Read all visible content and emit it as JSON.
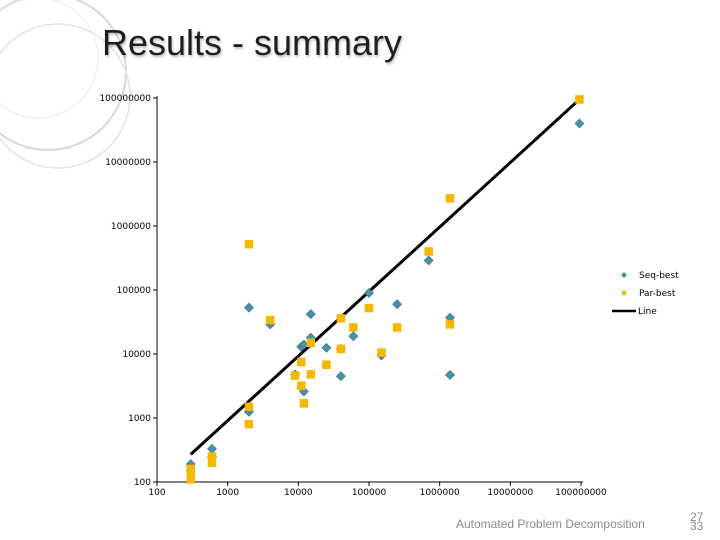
{
  "slide": {
    "title": "Results - summary",
    "footer": "Automated Problem Decomposition",
    "page_number": "27",
    "page_total": "33"
  },
  "chart_data": {
    "type": "scatter",
    "title": "",
    "xlabel": "",
    "ylabel": "",
    "x_scale": "log",
    "y_scale": "log",
    "xlim": [
      100,
      100000000
    ],
    "ylim": [
      100,
      100000000
    ],
    "x_ticks": [
      "100",
      "1000",
      "10000",
      "100000",
      "1000000",
      "10000000",
      "100000000"
    ],
    "y_ticks": [
      "100",
      "1000",
      "10000",
      "100000",
      "1000000",
      "10000000",
      "100000000"
    ],
    "grid": false,
    "legend_position": "right",
    "colors": {
      "seq": "#4a90a8",
      "par": "#f5b800",
      "line": "#000000"
    },
    "series": [
      {
        "name": "Seq-best",
        "marker": "diamond",
        "points": [
          [
            300,
            190
          ],
          [
            300,
            150
          ],
          [
            600,
            330
          ],
          [
            600,
            250
          ],
          [
            2000,
            53000
          ],
          [
            2000,
            1250
          ],
          [
            4000,
            29000
          ],
          [
            9000,
            4800
          ],
          [
            11000,
            13000
          ],
          [
            12000,
            14000
          ],
          [
            12000,
            2600
          ],
          [
            15000,
            18000
          ],
          [
            15000,
            42000
          ],
          [
            25000,
            12500
          ],
          [
            40000,
            4500
          ],
          [
            40000,
            12000
          ],
          [
            60000,
            19000
          ],
          [
            100000,
            90000
          ],
          [
            150000,
            9500
          ],
          [
            250000,
            60000
          ],
          [
            700000,
            290000
          ],
          [
            1400000,
            37000
          ],
          [
            1400000,
            4700
          ],
          [
            95000000,
            40000000
          ]
        ]
      },
      {
        "name": "Par-best",
        "marker": "square",
        "points": [
          [
            300,
            160
          ],
          [
            300,
            120
          ],
          [
            300,
            110
          ],
          [
            600,
            250
          ],
          [
            600,
            200
          ],
          [
            2000,
            1500
          ],
          [
            2000,
            800
          ],
          [
            2000,
            520000
          ],
          [
            4000,
            34000
          ],
          [
            9000,
            4600
          ],
          [
            11000,
            7500
          ],
          [
            11000,
            3200
          ],
          [
            12000,
            1700
          ],
          [
            15000,
            15000
          ],
          [
            15000,
            4800
          ],
          [
            25000,
            6800
          ],
          [
            40000,
            36000
          ],
          [
            40000,
            12000
          ],
          [
            60000,
            26000
          ],
          [
            100000,
            52000
          ],
          [
            150000,
            10500
          ],
          [
            250000,
            26000
          ],
          [
            700000,
            400000
          ],
          [
            1400000,
            2700000
          ],
          [
            1400000,
            29000
          ],
          [
            95000000,
            95000000
          ]
        ]
      },
      {
        "name": "Line",
        "type": "line",
        "points": [
          [
            300,
            270
          ],
          [
            95000000,
            95000000
          ]
        ]
      }
    ]
  }
}
